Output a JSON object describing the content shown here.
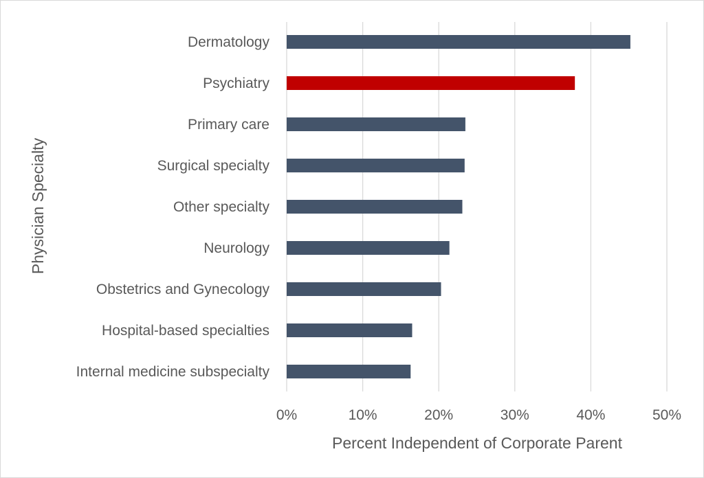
{
  "chart_data": {
    "type": "bar",
    "orientation": "horizontal",
    "xlabel": "Percent Independent of Corporate Parent",
    "ylabel": "Physician Specialty",
    "xlim": [
      0,
      50
    ],
    "x_ticks": [
      "0%",
      "10%",
      "20%",
      "30%",
      "40%",
      "50%"
    ],
    "grid": "vertical",
    "categories": [
      "Dermatology",
      "Psychiatry",
      "Primary care",
      "Surgical specialty",
      "Other specialty",
      "Neurology",
      "Obstetrics and Gynecology",
      "Hospital-based specialties",
      "Internal medicine subspecialty"
    ],
    "values": [
      45.2,
      37.9,
      23.5,
      23.4,
      23.1,
      21.4,
      20.3,
      16.5,
      16.3
    ],
    "bar_colors": [
      "#44546a",
      "#c00000",
      "#44546a",
      "#44546a",
      "#44546a",
      "#44546a",
      "#44546a",
      "#44546a",
      "#44546a"
    ],
    "gridline_color": "#d9d9d9",
    "text_color": "#595959"
  }
}
